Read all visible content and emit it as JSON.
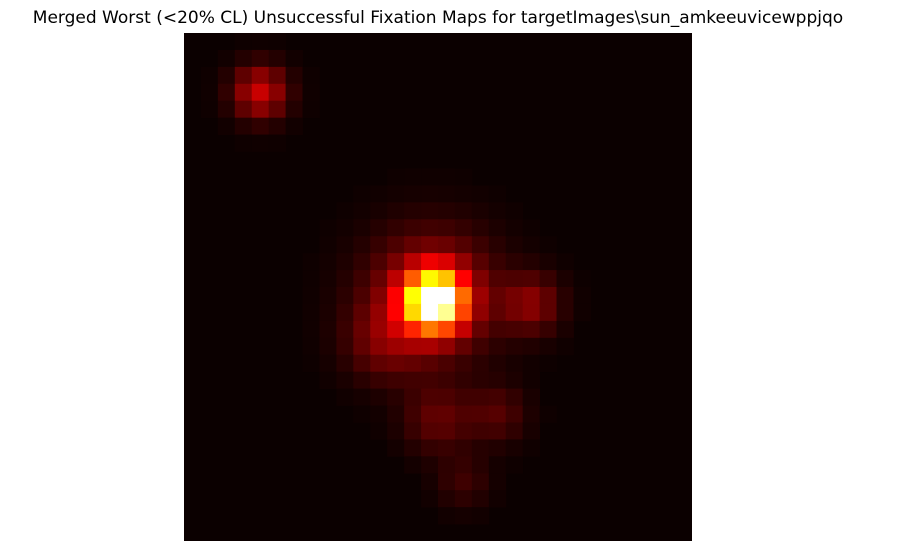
{
  "chart_data": {
    "type": "heatmap",
    "title": "Merged Worst (<20% CL) Unsuccessful Fixation Maps for targetImages\\sun_amkeeuvicewppjqo",
    "colormap": "hot",
    "axes_visible": false,
    "grid": false,
    "background_color": "#0b0000",
    "rows": 30,
    "cols": 30,
    "hotspots": [
      {
        "row": 3.5,
        "col": 4.5,
        "sigma": 1.1,
        "amp": 0.27
      },
      {
        "row": 15.8,
        "col": 14.8,
        "sigma": 1.2,
        "amp": 0.95
      },
      {
        "row": 15.5,
        "col": 14.6,
        "sigma": 2.6,
        "amp": 0.24
      },
      {
        "row": 18.2,
        "col": 11.8,
        "sigma": 1.6,
        "amp": 0.12
      },
      {
        "row": 16.0,
        "col": 20.5,
        "sigma": 1.2,
        "amp": 0.17
      },
      {
        "row": 22.8,
        "col": 15.0,
        "sigma": 1.4,
        "amp": 0.12
      },
      {
        "row": 22.5,
        "col": 18.5,
        "sigma": 1.2,
        "amp": 0.1
      },
      {
        "row": 26.5,
        "col": 16.5,
        "sigma": 1.1,
        "amp": 0.07
      }
    ]
  }
}
